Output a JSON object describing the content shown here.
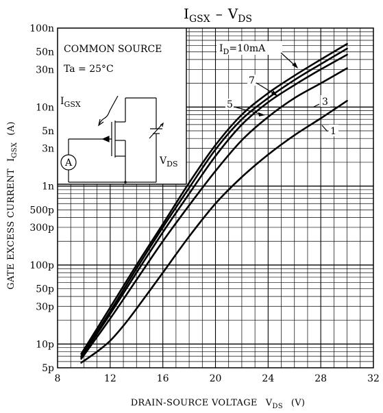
{
  "chart_data": {
    "type": "line",
    "title": "IGSX - VDS",
    "title_parts": {
      "main1": "I",
      "sub1": "GSX",
      "dash": "–",
      "main2": "V",
      "sub2": "DS"
    },
    "xlabel": "DRAIN-SOURCE VOLTAGE",
    "xlabel_symbol": {
      "main": "V",
      "sub": "DS"
    },
    "xlabel_unit": "(V)",
    "ylabel": "GATE EXCESS CURRENT",
    "ylabel_symbol": {
      "main": "I",
      "sub": "GSX"
    },
    "ylabel_unit": "(A)",
    "xlim": [
      8,
      32
    ],
    "ylim": [
      5e-12,
      1e-07
    ],
    "yscale": "log",
    "grid": true,
    "x_ticks": [
      8,
      12,
      16,
      20,
      24,
      28,
      32
    ],
    "x_tick_labels": [
      "8",
      "12",
      "16",
      "20",
      "24",
      "28",
      "32"
    ],
    "y_ticks": [
      1e-07,
      5e-08,
      3e-08,
      1e-08,
      5e-09,
      3e-09,
      1e-09,
      5e-10,
      3e-10,
      1e-10,
      5e-11,
      3e-11,
      1e-11,
      5e-12
    ],
    "y_tick_labels": [
      "100n",
      "50n",
      "30n",
      "10n",
      "5n",
      "3n",
      "1n",
      "500p",
      "300p",
      "100p",
      "50p",
      "30p",
      "10p",
      "5p"
    ],
    "series": [
      {
        "name": "10mA",
        "x": [
          9.8,
          12,
          14,
          16,
          18,
          20,
          22,
          24,
          26,
          28,
          30
        ],
        "y": [
          7.5e-12,
          2.9e-11,
          1e-10,
          3.3e-10,
          1.1e-09,
          3.3e-09,
          8e-09,
          1.5e-08,
          2.5e-08,
          4e-08,
          6.3e-08
        ]
      },
      {
        "name": "7",
        "x": [
          9.8,
          12,
          14,
          16,
          18,
          20,
          22,
          24,
          26,
          28,
          30
        ],
        "y": [
          7e-12,
          2.6e-11,
          9e-11,
          3e-10,
          9.5e-10,
          2.9e-09,
          7e-09,
          1.3e-08,
          2.2e-08,
          3.5e-08,
          5.5e-08
        ]
      },
      {
        "name": "5",
        "x": [
          9.8,
          12,
          14,
          16,
          18,
          20,
          22,
          24,
          26,
          28,
          30
        ],
        "y": [
          6.8e-12,
          2.4e-11,
          8e-11,
          2.6e-10,
          8e-10,
          2.4e-09,
          6e-09,
          1.15e-08,
          1.9e-08,
          3e-08,
          4.6e-08
        ]
      },
      {
        "name": "3",
        "x": [
          9.8,
          12,
          14,
          16,
          18,
          20,
          22,
          24,
          26,
          28,
          30
        ],
        "y": [
          6.5e-12,
          2.1e-11,
          6.5e-11,
          2e-10,
          5.7e-10,
          1.55e-09,
          3.8e-09,
          7.5e-09,
          1.3e-08,
          2e-08,
          3.1e-08
        ]
      },
      {
        "name": "1",
        "x": [
          9.8,
          11,
          12,
          13,
          14,
          16,
          18,
          20,
          22,
          24,
          26,
          28,
          30
        ],
        "y": [
          5.8e-12,
          8e-12,
          1.1e-11,
          1.7e-11,
          2.8e-11,
          8e-11,
          2.3e-10,
          6e-10,
          1.3e-09,
          2.5e-09,
          4.4e-09,
          7.2e-09,
          1.2e-08
        ]
      }
    ],
    "curve_labels": [
      {
        "text": "10mA",
        "prefix_main": "I",
        "prefix_sub": "D",
        "eq": "="
      },
      {
        "text": "7"
      },
      {
        "text": "5"
      },
      {
        "text": "3"
      },
      {
        "text": "1"
      }
    ],
    "inset": {
      "line1": "COMMON SOURCE",
      "line2": "Ta = 25°C",
      "igsx_main": "I",
      "igsx_sub": "GSX",
      "vds_main": "V",
      "vds_sub": "DS",
      "meter": "A"
    }
  }
}
